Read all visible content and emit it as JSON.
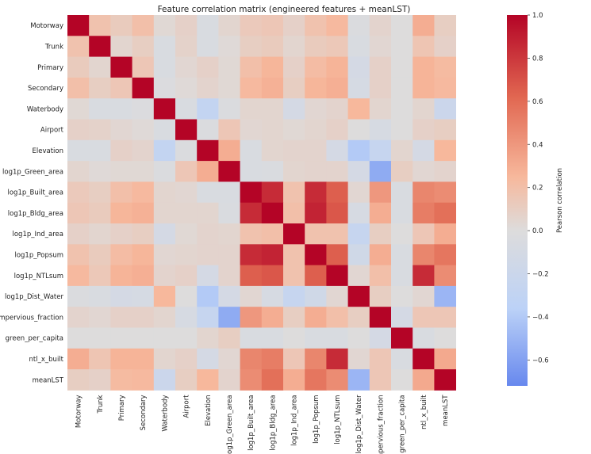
{
  "chart_data": {
    "type": "heatmap",
    "title": "Feature correlation matrix (engineered features + meanLST)",
    "labels": [
      "Motorway",
      "Trunk",
      "Primary",
      "Secondary",
      "Waterbody",
      "Airport",
      "Elevation",
      "log1p_Green_area",
      "log1p_Built_area",
      "log1p_Bldg_area",
      "log1p_Ind_area",
      "log1p_Popsum",
      "log1p_NTLsum",
      "log1p_Dist_Water",
      "impervious_fraction",
      "green_per_capita",
      "ntl_x_built",
      "meanLST"
    ],
    "matrix": [
      [
        1.0,
        0.18,
        0.12,
        0.2,
        0.03,
        0.08,
        -0.05,
        0.05,
        0.13,
        0.15,
        0.08,
        0.18,
        0.24,
        -0.03,
        0.06,
        0.0,
        0.3,
        0.1
      ],
      [
        0.18,
        1.0,
        0.05,
        0.1,
        -0.05,
        0.07,
        -0.05,
        0.02,
        0.1,
        0.12,
        0.05,
        0.12,
        0.14,
        -0.05,
        0.04,
        0.0,
        0.16,
        0.08
      ],
      [
        0.12,
        0.05,
        1.0,
        0.15,
        -0.05,
        0.04,
        0.08,
        0.03,
        0.2,
        0.26,
        0.08,
        0.22,
        0.27,
        -0.1,
        0.08,
        0.0,
        0.27,
        0.23
      ],
      [
        0.2,
        0.1,
        0.15,
        1.0,
        -0.02,
        0.02,
        0.06,
        0.03,
        0.24,
        0.28,
        0.1,
        0.26,
        0.29,
        -0.09,
        0.08,
        0.0,
        0.27,
        0.24
      ],
      [
        0.03,
        -0.05,
        -0.05,
        -0.02,
        1.0,
        -0.05,
        -0.28,
        -0.03,
        0.05,
        0.05,
        -0.1,
        0.04,
        0.06,
        0.25,
        0.05,
        0.0,
        0.05,
        -0.2
      ],
      [
        0.08,
        0.07,
        0.04,
        0.02,
        -0.05,
        1.0,
        -0.03,
        0.15,
        0.04,
        0.05,
        0.03,
        0.05,
        0.08,
        0.0,
        -0.08,
        0.0,
        0.08,
        0.1
      ],
      [
        -0.05,
        -0.05,
        0.08,
        0.06,
        -0.28,
        -0.03,
        1.0,
        0.3,
        -0.05,
        0.05,
        0.06,
        0.06,
        -0.1,
        -0.4,
        -0.25,
        0.05,
        -0.1,
        0.25
      ],
      [
        0.05,
        0.02,
        0.03,
        0.03,
        -0.03,
        0.15,
        0.3,
        1.0,
        -0.05,
        -0.04,
        0.05,
        0.06,
        0.06,
        -0.1,
        -0.55,
        0.1,
        0.04,
        0.06
      ],
      [
        0.13,
        0.1,
        0.2,
        0.24,
        0.05,
        0.04,
        -0.05,
        -0.05,
        1.0,
        0.85,
        0.18,
        0.85,
        0.65,
        0.04,
        0.4,
        -0.05,
        0.48,
        0.45
      ],
      [
        0.15,
        0.12,
        0.26,
        0.28,
        0.05,
        0.05,
        0.05,
        -0.04,
        0.85,
        1.0,
        0.2,
        0.88,
        0.68,
        -0.08,
        0.3,
        -0.05,
        0.52,
        0.58
      ],
      [
        0.08,
        0.05,
        0.08,
        0.1,
        -0.1,
        0.03,
        0.06,
        0.05,
        0.18,
        0.2,
        1.0,
        0.18,
        0.18,
        -0.25,
        0.1,
        0.0,
        0.15,
        0.3
      ],
      [
        0.18,
        0.12,
        0.22,
        0.26,
        0.04,
        0.05,
        0.06,
        0.06,
        0.85,
        0.88,
        0.18,
        1.0,
        0.65,
        -0.15,
        0.3,
        -0.05,
        0.48,
        0.55
      ],
      [
        0.24,
        0.14,
        0.27,
        0.29,
        0.06,
        0.08,
        -0.1,
        0.06,
        0.65,
        0.68,
        0.18,
        0.65,
        1.0,
        0.04,
        0.2,
        -0.05,
        0.85,
        0.45
      ],
      [
        -0.03,
        -0.05,
        -0.1,
        -0.09,
        0.25,
        0.0,
        -0.4,
        -0.1,
        0.04,
        -0.08,
        -0.25,
        -0.15,
        0.04,
        1.0,
        0.1,
        0.0,
        0.04,
        -0.5
      ],
      [
        0.06,
        0.04,
        0.08,
        0.08,
        0.05,
        -0.08,
        -0.25,
        -0.55,
        0.4,
        0.3,
        0.1,
        0.3,
        0.2,
        0.1,
        1.0,
        -0.1,
        0.15,
        0.15
      ],
      [
        0.0,
        0.0,
        0.0,
        0.0,
        0.0,
        0.0,
        0.05,
        0.1,
        -0.05,
        -0.05,
        0.0,
        -0.05,
        -0.05,
        0.0,
        -0.1,
        1.0,
        -0.05,
        0.0
      ],
      [
        0.3,
        0.16,
        0.27,
        0.27,
        0.05,
        0.08,
        -0.1,
        0.04,
        0.48,
        0.52,
        0.15,
        0.48,
        0.85,
        0.04,
        0.15,
        -0.05,
        1.0,
        0.32
      ],
      [
        0.1,
        0.08,
        0.23,
        0.24,
        -0.2,
        0.1,
        0.25,
        0.06,
        0.45,
        0.58,
        0.3,
        0.55,
        0.45,
        -0.5,
        0.15,
        0.0,
        0.32,
        1.0
      ]
    ],
    "colorbar": {
      "label": "Pearson correlation",
      "range": [
        -0.72,
        1.0
      ],
      "ticks": [
        "1.0",
        "0.8",
        "0.6",
        "0.4",
        "0.2",
        "0.0",
        "−0.2",
        "−0.4",
        "−0.6"
      ]
    },
    "colormap": [
      "#6788ee",
      "#bcd2f7",
      "#dddcdc",
      "#f7b89c",
      "#e16751",
      "#b40426"
    ],
    "xlabel": "",
    "ylabel": ""
  }
}
